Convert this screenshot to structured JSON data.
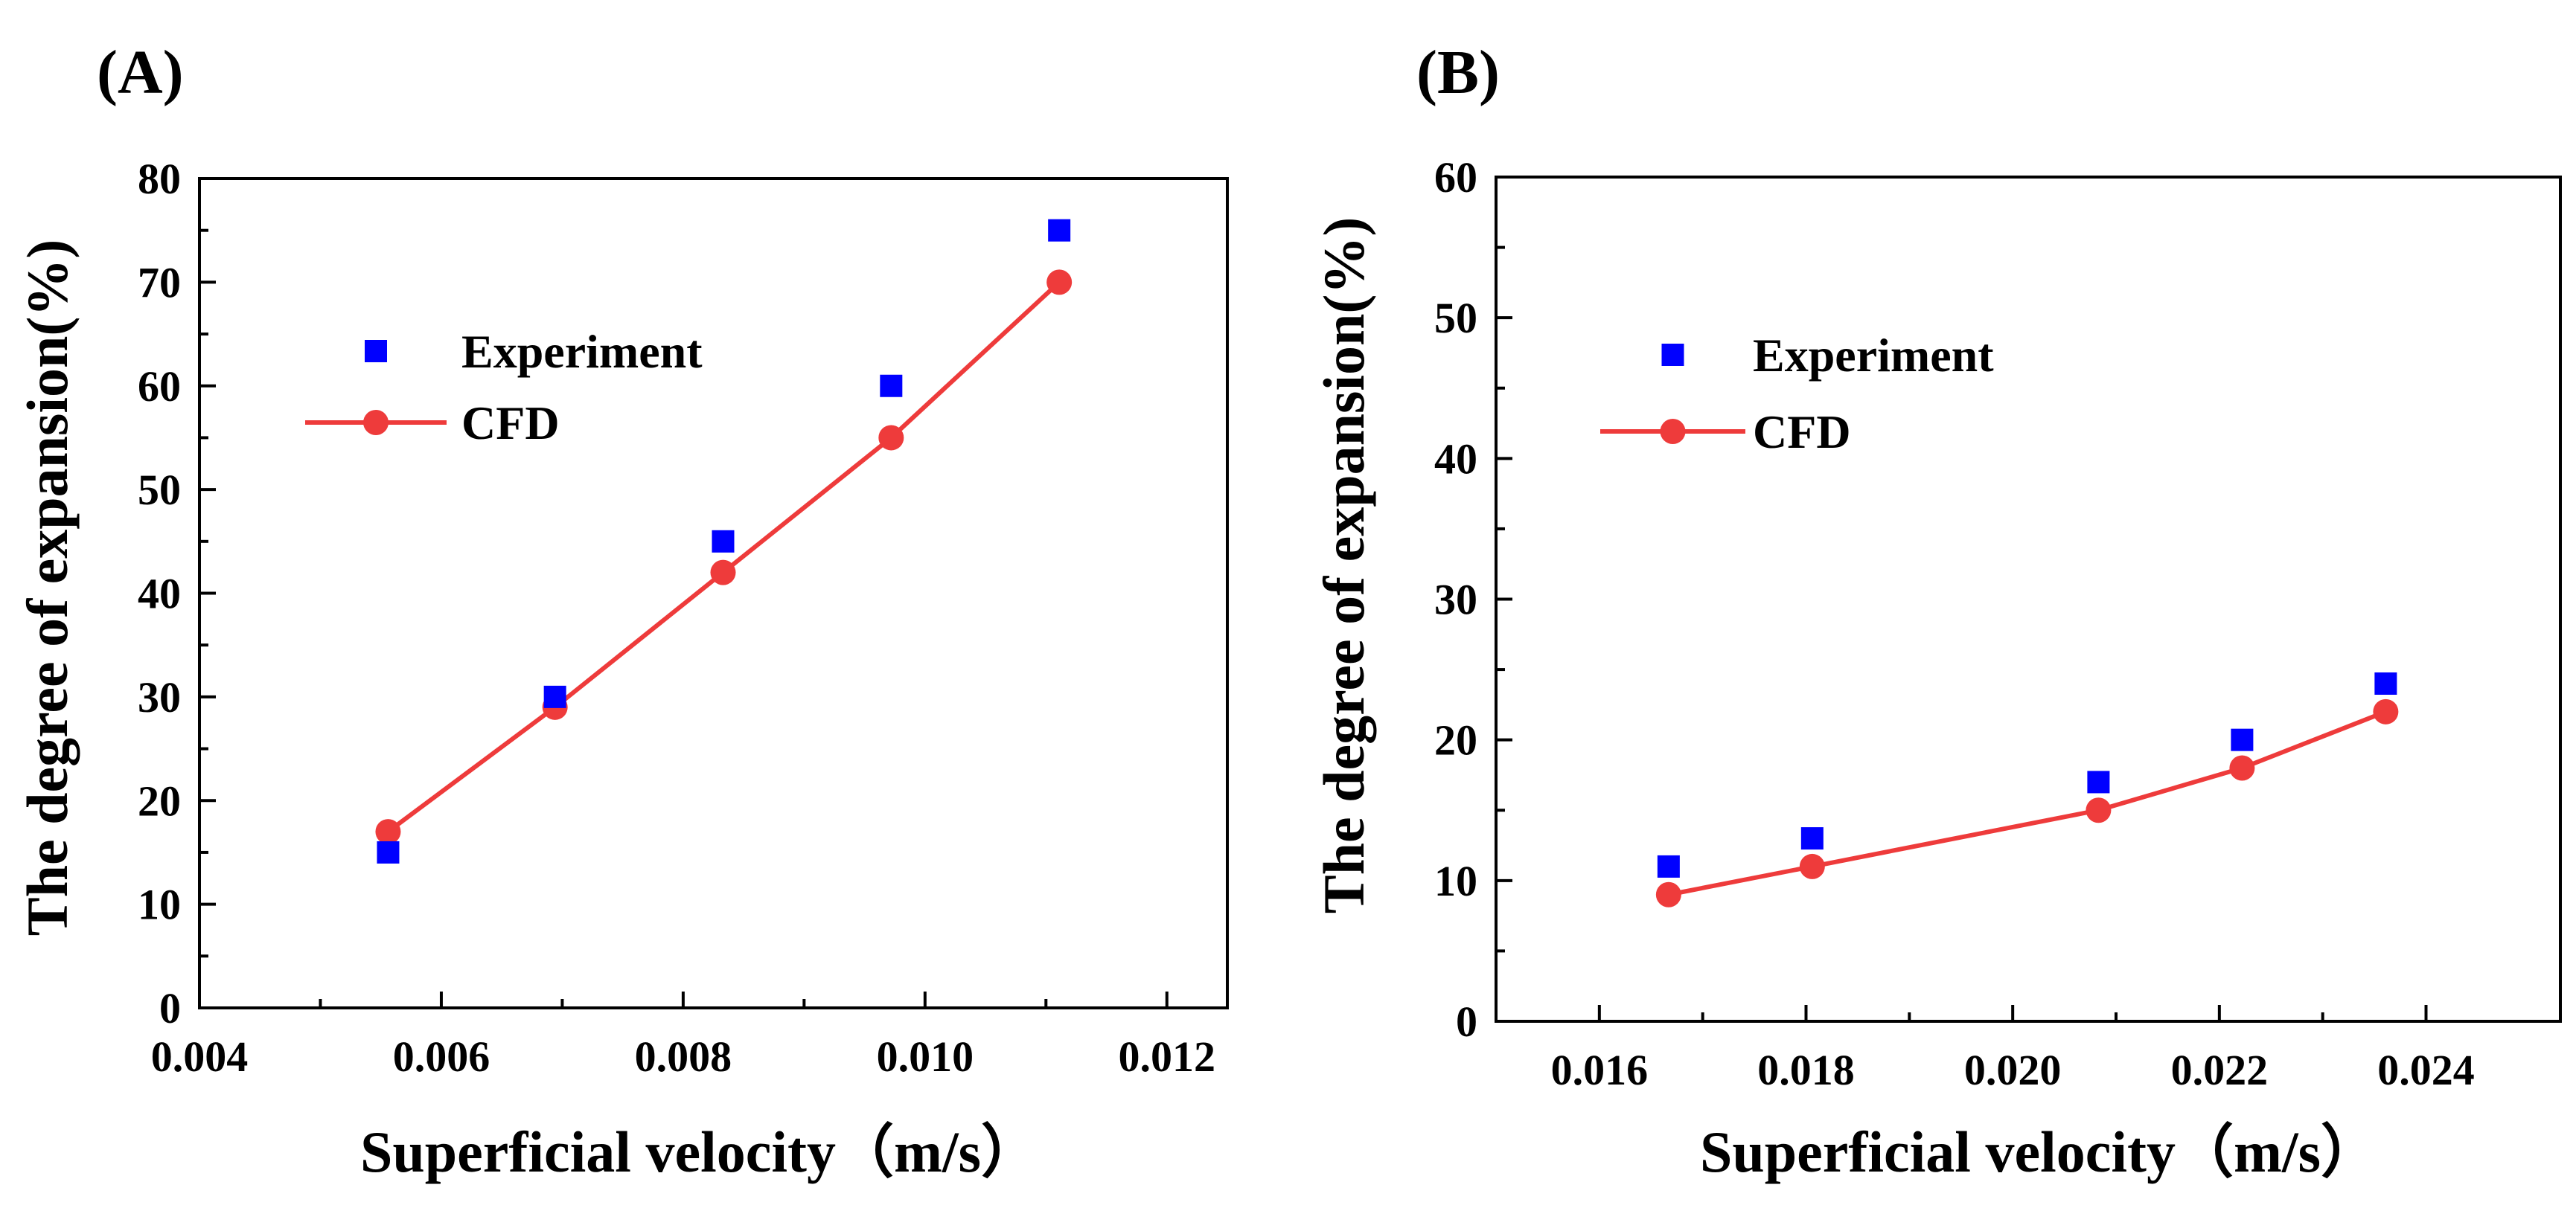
{
  "figure": {
    "colors": {
      "experiment": "#0000FF",
      "cfd": "#EE3B3B",
      "axis": "#000000"
    }
  },
  "chart_data": [
    {
      "panel_label": "(A)",
      "type": "scatter+line",
      "xlabel": "Superficial velocity（m/s）",
      "ylabel": "The degree of expansion(%)",
      "xlim": [
        0.004,
        0.0125
      ],
      "ylim": [
        0,
        80
      ],
      "xticks": [
        0.004,
        0.006,
        0.008,
        0.01,
        0.012
      ],
      "xtick_labels": [
        "0.004",
        "0.006",
        "0.008",
        "0.010",
        "0.012"
      ],
      "yticks": [
        0,
        10,
        20,
        30,
        40,
        50,
        60,
        70,
        80
      ],
      "ytick_labels": [
        "0",
        "10",
        "20",
        "30",
        "40",
        "50",
        "60",
        "70",
        "80"
      ],
      "legend": {
        "placement": "upper-left",
        "entries": [
          "Experiment",
          "CFD"
        ]
      },
      "series": [
        {
          "name": "Experiment",
          "marker": "square",
          "x": [
            0.00556,
            0.00694,
            0.00833,
            0.00972,
            0.01111
          ],
          "y": [
            15,
            30,
            45,
            60,
            75
          ]
        },
        {
          "name": "CFD",
          "marker": "circle-line",
          "x": [
            0.00556,
            0.00694,
            0.00833,
            0.00972,
            0.01111
          ],
          "y": [
            17,
            29,
            42,
            55,
            70
          ]
        }
      ]
    },
    {
      "panel_label": "(B)",
      "type": "scatter+line",
      "xlabel": "Superficial velocity（m/s）",
      "ylabel": "The degree of expansion(%)",
      "xlim": [
        0.015,
        0.0253
      ],
      "ylim": [
        0,
        60
      ],
      "xticks": [
        0.016,
        0.018,
        0.02,
        0.022,
        0.024
      ],
      "xtick_labels": [
        "0.016",
        "0.018",
        "0.020",
        "0.022",
        "0.024"
      ],
      "yticks": [
        0,
        10,
        20,
        30,
        40,
        50,
        60
      ],
      "ytick_labels": [
        "0",
        "10",
        "20",
        "30",
        "40",
        "50",
        "60"
      ],
      "legend": {
        "placement": "upper-left",
        "entries": [
          "Experiment",
          "CFD"
        ]
      },
      "series": [
        {
          "name": "Experiment",
          "marker": "square",
          "x": [
            0.01667,
            0.01806,
            0.02083,
            0.02222,
            0.02361
          ],
          "y": [
            11,
            13,
            17,
            20,
            24
          ]
        },
        {
          "name": "CFD",
          "marker": "circle-line",
          "x": [
            0.01667,
            0.01806,
            0.02083,
            0.02222,
            0.02361
          ],
          "y": [
            9,
            11,
            15,
            18,
            22
          ]
        }
      ]
    }
  ]
}
